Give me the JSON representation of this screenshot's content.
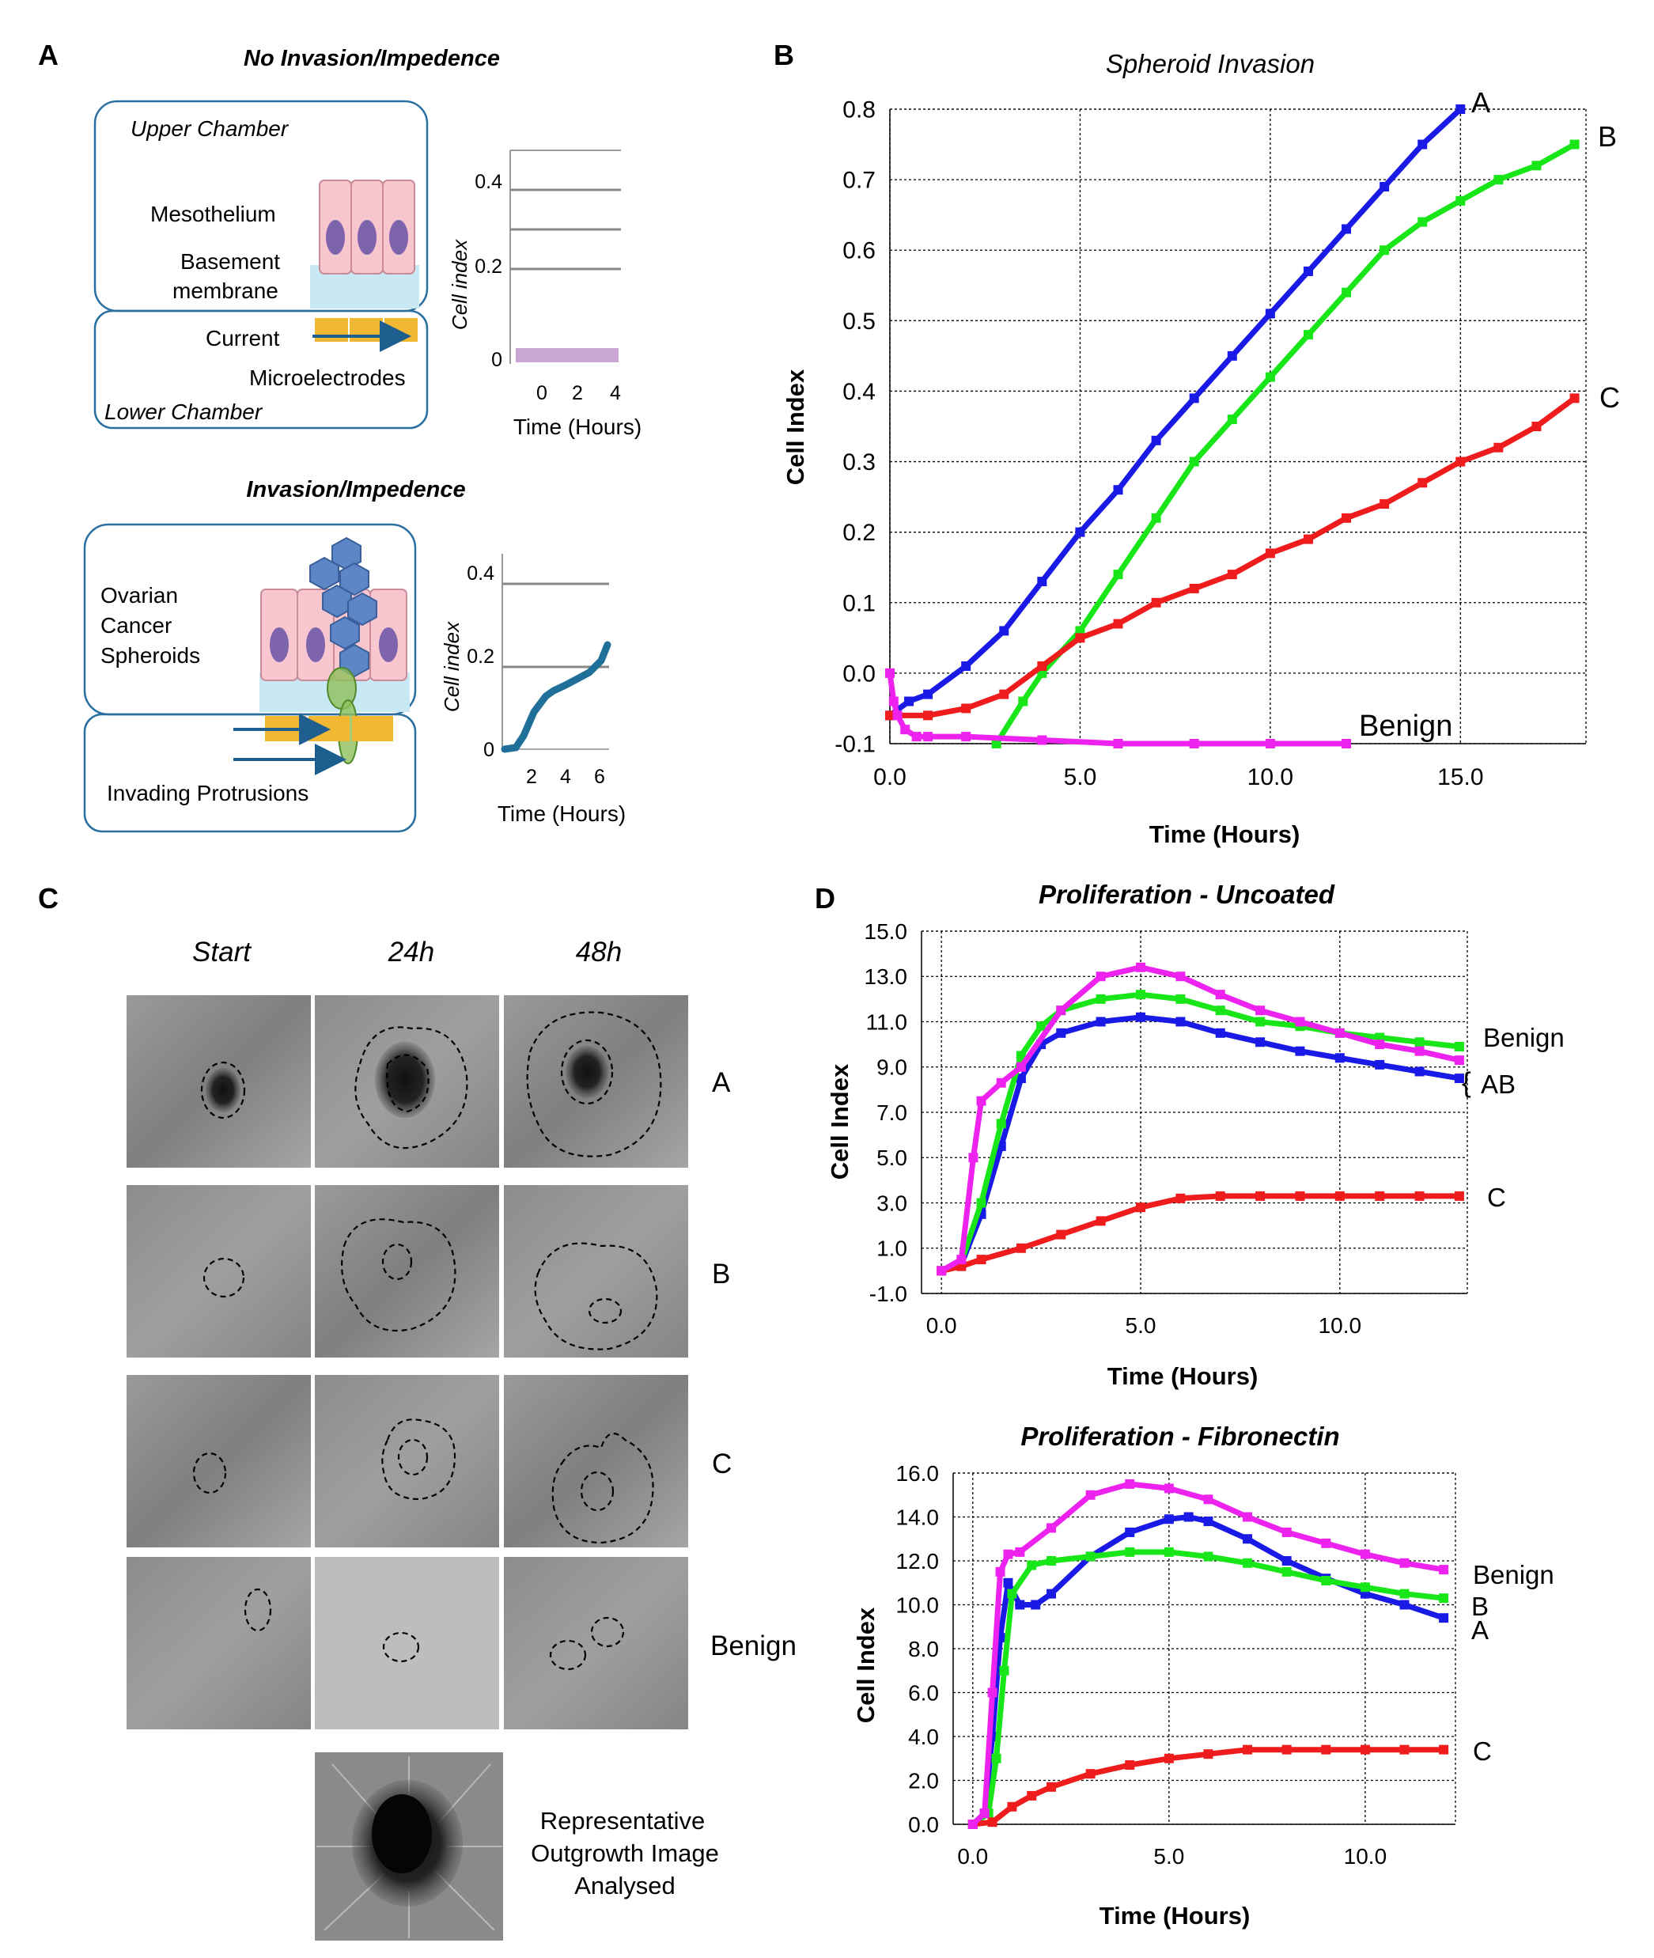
{
  "colors": {
    "A": "#1a1ae6",
    "B": "#19e619",
    "C": "#ee1c1c",
    "Benign": "#ee22ee",
    "schematic_line": "#1f5f8f",
    "electrode": "#f2b733",
    "cell": "#f7c6cf",
    "nucleus": "#7d64ad",
    "membrane": "#c8e8f4",
    "spheroid": "#5d86c7"
  },
  "icons": [
    "mesothelial-cell-icon",
    "microelectrode-icon",
    "spheroid-cluster-icon",
    "invading-protrusion-icon",
    "arrow-icon"
  ],
  "panel_a": {
    "letter": "A",
    "top": {
      "title": "No Invasion/Impedence",
      "upper_chamber": "Upper Chamber",
      "mesothelium": "Mesothelium",
      "basement_line1": "Basement",
      "basement_line2": "membrane",
      "current": "Current",
      "microelectrodes": "Microelectrodes",
      "lower_chamber": "Lower Chamber",
      "mini_chart": {
        "ylabel": "Cell index",
        "xlabel": "Time (Hours)",
        "ytick_labels": [
          "0",
          "0.2",
          "0.4"
        ],
        "xtick_labels": [
          "0",
          "2",
          "4"
        ],
        "line_color": "#c9a6d3"
      }
    },
    "bottom": {
      "title": "Invasion/Impedence",
      "spheroid_line1": "Ovarian",
      "spheroid_line2": "Cancer",
      "spheroid_line3": "Spheroids",
      "protrusions": "Invading Protrusions",
      "mini_chart": {
        "ylabel": "Cell index",
        "xlabel": "Time (Hours)",
        "ytick_labels": [
          "0",
          "0.2",
          "0.4"
        ],
        "xtick_labels": [
          "2",
          "4",
          "6"
        ],
        "line_color": "#1f6f99"
      }
    }
  },
  "panel_b": {
    "letter": "B",
    "chart_data": {
      "type": "line",
      "title": "Spheroid Invasion",
      "xlabel": "Time (Hours)",
      "ylabel": "Cell Index",
      "xlim": [
        0,
        18.3
      ],
      "ylim": [
        -0.1,
        0.8
      ],
      "xticks": [
        0,
        5,
        10,
        15
      ],
      "xtick_labels": [
        "0.0",
        "5.0",
        "10.0",
        "15.0"
      ],
      "yticks": [
        -0.1,
        0,
        0.1,
        0.2,
        0.3,
        0.4,
        0.5,
        0.6,
        0.7,
        0.8
      ],
      "ytick_labels": [
        "-0.1",
        "0.0",
        "0.1",
        "0.2",
        "0.3",
        "0.4",
        "0.5",
        "0.6",
        "0.7",
        "0.8"
      ],
      "grid": true,
      "series": [
        {
          "name": "A",
          "x": [
            0,
            0.5,
            1,
            2,
            3,
            4,
            5,
            6,
            7,
            8,
            9,
            10,
            11,
            12,
            13,
            14,
            15
          ],
          "y": [
            -0.06,
            -0.04,
            -0.03,
            0.01,
            0.06,
            0.13,
            0.2,
            0.26,
            0.33,
            0.39,
            0.45,
            0.51,
            0.57,
            0.63,
            0.69,
            0.75,
            0.8
          ]
        },
        {
          "name": "B",
          "x": [
            2.8,
            3.5,
            4,
            5,
            6,
            7,
            8,
            9,
            10,
            11,
            12,
            13,
            14,
            15,
            16,
            17,
            18
          ],
          "y": [
            -0.1,
            -0.04,
            0,
            0.06,
            0.14,
            0.22,
            0.3,
            0.36,
            0.42,
            0.48,
            0.54,
            0.6,
            0.64,
            0.67,
            0.7,
            0.72,
            0.75
          ]
        },
        {
          "name": "C",
          "x": [
            0,
            1,
            2,
            3,
            4,
            5,
            6,
            7,
            8,
            9,
            10,
            11,
            12,
            13,
            14,
            15,
            16,
            17,
            18
          ],
          "y": [
            -0.06,
            -0.06,
            -0.05,
            -0.03,
            0.01,
            0.05,
            0.07,
            0.1,
            0.12,
            0.14,
            0.17,
            0.19,
            0.22,
            0.24,
            0.27,
            0.3,
            0.32,
            0.35,
            0.39
          ]
        },
        {
          "name": "Benign",
          "x": [
            0,
            0.1,
            0.2,
            0.4,
            0.7,
            1,
            2,
            4,
            6,
            8,
            10,
            12
          ],
          "y": [
            0.0,
            -0.04,
            -0.06,
            -0.08,
            -0.09,
            -0.09,
            -0.09,
            -0.095,
            -0.1,
            -0.1,
            -0.1,
            -0.1
          ]
        }
      ],
      "annotations": [
        "A",
        "B",
        "C",
        "Benign"
      ]
    }
  },
  "panel_c": {
    "letter": "C",
    "column_headers": [
      "Start",
      "24h",
      "48h"
    ],
    "row_labels": [
      "A",
      "B",
      "C",
      "Benign"
    ],
    "rep_line1": "Representative",
    "rep_line2": "Outgrowth Image",
    "rep_line3": "Analysed"
  },
  "panel_d": {
    "letter": "D",
    "chart_data": [
      {
        "type": "line",
        "title": "Proliferation - Uncoated",
        "xlabel": "Time (Hours)",
        "ylabel": "Cell Index",
        "xlim": [
          -0.5,
          13.2
        ],
        "ylim": [
          -1,
          15
        ],
        "xticks": [
          0,
          5,
          10
        ],
        "xtick_labels": [
          "0.0",
          "5.0",
          "10.0"
        ],
        "yticks": [
          -1,
          1,
          3,
          5,
          7,
          9,
          11,
          13,
          15
        ],
        "ytick_labels": [
          "-1.0",
          "1.0",
          "3.0",
          "5.0",
          "7.0",
          "9.0",
          "11.0",
          "13.0",
          "15.0"
        ],
        "grid": true,
        "series": [
          {
            "name": "A",
            "x": [
              0,
              0.5,
              1,
              1.5,
              2,
              2.5,
              3,
              4,
              5,
              6,
              7,
              8,
              9,
              10,
              11,
              12,
              13
            ],
            "y": [
              0,
              0.3,
              2.5,
              5.5,
              8.5,
              10.0,
              10.5,
              11.0,
              11.2,
              11.0,
              10.5,
              10.1,
              9.7,
              9.4,
              9.1,
              8.8,
              8.5
            ]
          },
          {
            "name": "B",
            "x": [
              0,
              0.5,
              1,
              1.5,
              2,
              2.5,
              3,
              4,
              5,
              6,
              7,
              8,
              9,
              10,
              11,
              12,
              13
            ],
            "y": [
              0,
              0.4,
              3.0,
              6.5,
              9.5,
              10.8,
              11.5,
              12.0,
              12.2,
              12.0,
              11.5,
              11.0,
              10.8,
              10.5,
              10.3,
              10.1,
              9.9
            ]
          },
          {
            "name": "C",
            "x": [
              0,
              0.5,
              1,
              2,
              3,
              4,
              5,
              6,
              7,
              8,
              9,
              10,
              11,
              12,
              13
            ],
            "y": [
              0,
              0.2,
              0.5,
              1.0,
              1.6,
              2.2,
              2.8,
              3.2,
              3.3,
              3.3,
              3.3,
              3.3,
              3.3,
              3.3,
              3.3
            ]
          },
          {
            "name": "Benign",
            "x": [
              0,
              0.5,
              0.8,
              1,
              1.5,
              2,
              3,
              4,
              5,
              6,
              7,
              8,
              9,
              10,
              11,
              12,
              13
            ],
            "y": [
              0,
              0.5,
              5.0,
              7.5,
              8.3,
              9.0,
              11.5,
              13.0,
              13.4,
              13.0,
              12.2,
              11.5,
              11.0,
              10.5,
              10.0,
              9.7,
              9.3
            ]
          }
        ],
        "annotations": [
          "Benign",
          "AB",
          "C"
        ]
      },
      {
        "type": "line",
        "title": "Proliferation - Fibronectin",
        "xlabel": "Time (Hours)",
        "ylabel": "Cell Index",
        "xlim": [
          -0.5,
          12.3
        ],
        "ylim": [
          0,
          16
        ],
        "xticks": [
          0,
          5,
          10
        ],
        "xtick_labels": [
          "0.0",
          "5.0",
          "10.0"
        ],
        "yticks": [
          0,
          2,
          4,
          6,
          8,
          10,
          12,
          14,
          16
        ],
        "ytick_labels": [
          "0.0",
          "2.0",
          "4.0",
          "6.0",
          "8.0",
          "10.0",
          "12.0",
          "14.0",
          "16.0"
        ],
        "grid": true,
        "series": [
          {
            "name": "A",
            "x": [
              0,
              0.3,
              0.5,
              0.7,
              0.9,
              1.2,
              1.6,
              2,
              3,
              4,
              5,
              5.5,
              6,
              7,
              8,
              9,
              10,
              11,
              12
            ],
            "y": [
              0,
              0.5,
              4.0,
              8.5,
              11.0,
              10.0,
              10.0,
              10.5,
              12.2,
              13.3,
              13.9,
              14.0,
              13.8,
              13.0,
              12.0,
              11.2,
              10.5,
              10.0,
              9.4
            ]
          },
          {
            "name": "B",
            "x": [
              0,
              0.4,
              0.6,
              0.8,
              1,
              1.5,
              2,
              3,
              4,
              5,
              6,
              7,
              8,
              9,
              10,
              11,
              12
            ],
            "y": [
              0,
              0.5,
              3.0,
              7.0,
              10.5,
              11.8,
              12.0,
              12.2,
              12.4,
              12.4,
              12.2,
              11.9,
              11.5,
              11.1,
              10.8,
              10.5,
              10.3
            ]
          },
          {
            "name": "C",
            "x": [
              0,
              0.5,
              1,
              1.5,
              2,
              3,
              4,
              5,
              6,
              7,
              8,
              9,
              10,
              11,
              12
            ],
            "y": [
              0,
              0.1,
              0.8,
              1.3,
              1.7,
              2.3,
              2.7,
              3.0,
              3.2,
              3.4,
              3.4,
              3.4,
              3.4,
              3.4,
              3.4
            ]
          },
          {
            "name": "Benign",
            "x": [
              0,
              0.3,
              0.5,
              0.7,
              0.9,
              1.2,
              2,
              3,
              4,
              5,
              6,
              7,
              8,
              9,
              10,
              11,
              12
            ],
            "y": [
              0,
              0.5,
              6.0,
              11.5,
              12.3,
              12.4,
              13.5,
              15.0,
              15.5,
              15.3,
              14.8,
              14.0,
              13.3,
              12.8,
              12.3,
              11.9,
              11.6
            ]
          }
        ],
        "annotations": [
          "Benign",
          "B",
          "A",
          "C"
        ]
      }
    ]
  }
}
